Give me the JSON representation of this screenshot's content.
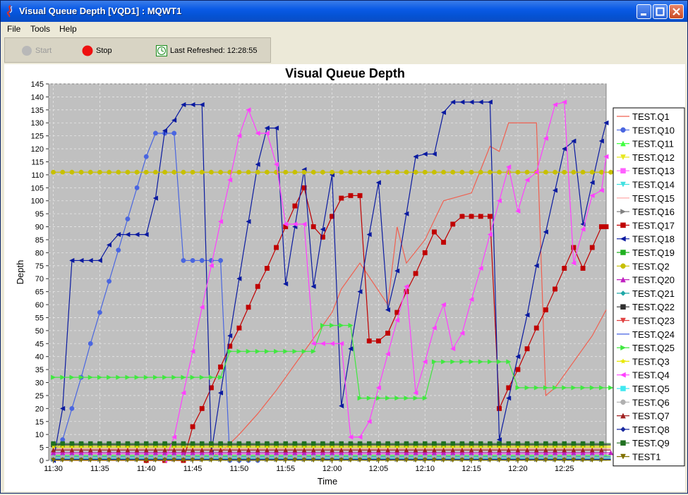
{
  "window": {
    "title": "Visual Queue Depth [VQD1] : MQWT1"
  },
  "menu": {
    "file": "File",
    "tools": "Tools",
    "help": "Help"
  },
  "toolbar": {
    "start_label": "Start",
    "stop_label": "Stop",
    "refresh_label": "Last Refreshed: 12:28:55"
  },
  "chart_data": {
    "type": "line",
    "title": "Visual Queue Depth",
    "xlabel": "Time",
    "ylabel": "Depth",
    "x_ticks": [
      "11:30",
      "11:35",
      "11:40",
      "11:45",
      "11:50",
      "11:55",
      "12:00",
      "12:05",
      "12:10",
      "12:15",
      "12:20",
      "12:25"
    ],
    "x_tick_minutes": [
      0,
      5,
      10,
      15,
      20,
      25,
      30,
      35,
      40,
      45,
      50,
      55
    ],
    "xlim": [
      -0.5,
      59.5
    ],
    "ylim": [
      0,
      145
    ],
    "y_ticks": [
      0,
      5,
      10,
      15,
      20,
      25,
      30,
      35,
      40,
      45,
      50,
      55,
      60,
      65,
      70,
      75,
      80,
      85,
      90,
      95,
      100,
      105,
      110,
      115,
      120,
      125,
      130,
      135,
      140,
      145
    ],
    "grid": true,
    "legend_position": "right",
    "series": [
      {
        "name": "TEST.Q1",
        "color": "#f06050",
        "marker": "none",
        "x": [
          0,
          12,
          14,
          16,
          18,
          20,
          22,
          24,
          26,
          28,
          30,
          31,
          33,
          36,
          37,
          38,
          40,
          42,
          43,
          45,
          46,
          47,
          48,
          49,
          50,
          52,
          53,
          54,
          56,
          58,
          59.5
        ],
        "y": [
          0,
          0,
          0,
          0,
          3,
          10,
          18,
          27,
          37,
          47,
          57,
          66,
          76,
          60,
          90,
          76,
          85,
          100,
          101,
          103,
          112,
          121,
          119,
          130,
          130,
          130,
          25,
          28,
          38,
          48,
          58
        ]
      },
      {
        "name": "TEST.Q10",
        "color": "#4a66e0",
        "marker": "circle",
        "x": [
          0,
          1,
          2,
          3,
          4,
          5,
          6,
          7,
          8,
          9,
          10,
          11,
          12,
          13,
          14,
          15,
          16,
          17,
          18,
          19,
          20,
          21,
          22
        ],
        "y": [
          3,
          8,
          20,
          32,
          45,
          57,
          69,
          81,
          93,
          105,
          117,
          126,
          126,
          126,
          77,
          77,
          77,
          77,
          77,
          0,
          0,
          0,
          0
        ]
      },
      {
        "name": "TEST.Q11",
        "color": "#40ff40",
        "marker": "triangle-up",
        "x": [
          0,
          60
        ],
        "y": [
          2,
          2
        ]
      },
      {
        "name": "TEST.Q12",
        "color": "#e8e820",
        "marker": "triangle-down",
        "x": [
          0,
          60
        ],
        "y": [
          5,
          5
        ]
      },
      {
        "name": "TEST.Q13",
        "color": "#ff60ff",
        "marker": "square",
        "x": [
          0,
          60
        ],
        "y": [
          2.5,
          2.5
        ]
      },
      {
        "name": "TEST.Q14",
        "color": "#40e0e0",
        "marker": "triangle-down",
        "x": [
          0,
          60
        ],
        "y": [
          1,
          1
        ]
      },
      {
        "name": "TEST.Q15",
        "color": "#ffa0a0",
        "marker": "none",
        "x": [
          0,
          60
        ],
        "y": [
          4.5,
          4.5
        ]
      },
      {
        "name": "TEST.Q16",
        "color": "#808080",
        "marker": "triangle-right",
        "x": [
          0,
          60
        ],
        "y": [
          0.3,
          0.3
        ]
      },
      {
        "name": "TEST.Q17",
        "color": "#c00000",
        "marker": "square",
        "x": [
          10,
          12,
          14,
          15,
          16,
          17,
          18,
          19,
          20,
          21,
          22,
          23,
          24,
          25,
          26,
          27,
          28,
          29,
          30,
          31,
          32,
          33,
          34,
          35,
          36,
          37,
          38,
          39,
          40,
          41,
          42,
          43,
          44,
          45,
          46,
          47,
          48,
          49,
          50,
          51,
          52,
          53,
          54,
          55,
          56,
          57,
          58,
          59,
          59.5
        ],
        "y": [
          0,
          0,
          0,
          13,
          20,
          28,
          36,
          44,
          51,
          59,
          67,
          74,
          82,
          90,
          98,
          105,
          90,
          86,
          94,
          101,
          102,
          102,
          46,
          46,
          49,
          57,
          65,
          72,
          80,
          88,
          84,
          91,
          94,
          94,
          94,
          94,
          20,
          28,
          35,
          43,
          51,
          58,
          66,
          74,
          82,
          74,
          82,
          90,
          90
        ]
      },
      {
        "name": "TEST.Q18",
        "color": "#0a1aa0",
        "marker": "triangle-left",
        "x": [
          0,
          1,
          2,
          3,
          4,
          5,
          6,
          7,
          8,
          9,
          10,
          11,
          12,
          13,
          14,
          15,
          16,
          17,
          18,
          19,
          20,
          21,
          22,
          23,
          24,
          25,
          26,
          27,
          28,
          29,
          30,
          31,
          32,
          33,
          34,
          35,
          36,
          37,
          38,
          39,
          40,
          41,
          42,
          43,
          44,
          45,
          46,
          47,
          48,
          49,
          50,
          51,
          52,
          53,
          54,
          55,
          56,
          57,
          58,
          59,
          59.5
        ],
        "y": [
          0,
          20,
          77,
          77,
          77,
          77,
          83,
          87,
          87,
          87,
          87,
          101,
          127,
          131,
          137,
          137,
          137,
          3,
          26,
          48,
          70,
          92,
          114,
          128,
          128,
          68,
          90,
          112,
          67,
          89,
          110,
          21,
          43,
          65,
          87,
          107,
          58,
          73,
          95,
          117,
          118,
          118,
          134,
          138,
          138,
          138,
          138,
          138,
          8,
          24,
          40,
          56,
          75,
          88,
          104,
          120,
          123,
          91,
          107,
          123,
          130
        ]
      },
      {
        "name": "TEST.Q19",
        "color": "#20b020",
        "marker": "square",
        "x": [
          0,
          60
        ],
        "y": [
          6,
          6
        ]
      },
      {
        "name": "TEST.Q2",
        "color": "#c8c000",
        "marker": "circle",
        "x": [
          0,
          1,
          2,
          3,
          4,
          5,
          6,
          7,
          8,
          9,
          10,
          11,
          12,
          13,
          14,
          15,
          16,
          17,
          18,
          19,
          20,
          21,
          22,
          23,
          24,
          25,
          26,
          27,
          28,
          29,
          30,
          31,
          32,
          33,
          34,
          35,
          36,
          37,
          38,
          39,
          40,
          41,
          42,
          43,
          44,
          45,
          46,
          47,
          48,
          49,
          50,
          51,
          52,
          53,
          54,
          55,
          56,
          57,
          58,
          59,
          60
        ],
        "y": [
          111,
          111,
          111,
          111,
          111,
          111,
          111,
          111,
          111,
          111,
          111,
          111,
          111,
          111,
          111,
          111,
          111,
          111,
          111,
          111,
          111,
          111,
          111,
          111,
          111,
          111,
          111,
          111,
          111,
          111,
          111,
          111,
          111,
          111,
          111,
          111,
          111,
          111,
          111,
          111,
          111,
          111,
          111,
          111,
          111,
          111,
          111,
          111,
          111,
          111,
          111,
          111,
          111,
          111,
          111,
          111,
          111,
          111,
          111,
          111,
          111
        ]
      },
      {
        "name": "TEST.Q20",
        "color": "#c020c0",
        "marker": "triangle-up",
        "x": [
          0,
          1,
          2,
          3,
          4,
          5,
          6,
          7,
          8,
          9,
          10,
          11,
          12,
          13,
          14,
          15,
          16,
          17,
          18,
          19,
          20,
          21,
          22,
          23,
          24,
          25,
          26,
          27,
          28,
          29,
          30,
          31,
          32,
          33,
          34,
          35,
          36,
          37,
          38,
          39,
          40,
          41,
          42,
          43,
          44,
          45,
          46,
          47,
          48,
          49,
          50,
          51,
          52,
          53,
          54,
          55,
          56,
          57,
          58,
          59,
          60
        ],
        "y": [
          3,
          3,
          3,
          3,
          3,
          3,
          3,
          3,
          3,
          3,
          3,
          3,
          3,
          3,
          3,
          3,
          3,
          3,
          3,
          3,
          3,
          3,
          3,
          3,
          3,
          3,
          3,
          3,
          3,
          3,
          3,
          3,
          3,
          3,
          3,
          3,
          3,
          3,
          3,
          3,
          3,
          3,
          3,
          3,
          3,
          3,
          3,
          3,
          3,
          3,
          3,
          3,
          3,
          3,
          3,
          3,
          3,
          3,
          3,
          3,
          3
        ]
      },
      {
        "name": "TEST.Q21",
        "color": "#20a8a8",
        "marker": "diamond",
        "x": [
          0,
          60
        ],
        "y": [
          1.5,
          1.5
        ]
      },
      {
        "name": "TEST.Q22",
        "color": "#303030",
        "marker": "square",
        "x": [
          0,
          60
        ],
        "y": [
          6,
          6
        ]
      },
      {
        "name": "TEST.Q23",
        "color": "#e04040",
        "marker": "triangle-down",
        "x": [
          0,
          60
        ],
        "y": [
          0.5,
          0.5
        ]
      },
      {
        "name": "TEST.Q24",
        "color": "#3050e0",
        "marker": "none",
        "x": [
          0,
          60
        ],
        "y": [
          0.2,
          0.2
        ]
      },
      {
        "name": "TEST.Q25",
        "color": "#40e840",
        "marker": "triangle-right",
        "x": [
          0,
          1,
          2,
          3,
          4,
          5,
          6,
          7,
          8,
          9,
          10,
          11,
          12,
          13,
          14,
          15,
          16,
          17,
          18,
          19,
          20,
          21,
          22,
          23,
          24,
          25,
          26,
          27,
          28,
          29,
          30,
          31,
          32,
          33,
          34,
          35,
          36,
          37,
          38,
          39,
          40,
          41,
          42,
          43,
          44,
          45,
          46,
          47,
          48,
          49,
          50,
          51,
          52,
          53,
          54,
          55,
          56,
          57,
          58,
          59,
          60
        ],
        "y": [
          32,
          32,
          32,
          32,
          32,
          32,
          32,
          32,
          32,
          32,
          32,
          32,
          32,
          32,
          32,
          32,
          32,
          32,
          32,
          42,
          42,
          42,
          42,
          42,
          42,
          42,
          42,
          42,
          42,
          52,
          52,
          52,
          52,
          24,
          24,
          24,
          24,
          24,
          24,
          24,
          24,
          38,
          38,
          38,
          38,
          38,
          38,
          38,
          38,
          38,
          28,
          28,
          28,
          28,
          28,
          28,
          28,
          28,
          28,
          28,
          28
        ]
      },
      {
        "name": "TEST.Q3",
        "color": "#e8e800",
        "marker": "star",
        "x": [
          0,
          60
        ],
        "y": [
          5.5,
          5.5
        ]
      },
      {
        "name": "TEST.Q4",
        "color": "#ff40ff",
        "marker": "triangle-left",
        "x": [
          12,
          13,
          14,
          15,
          16,
          17,
          18,
          19,
          20,
          21,
          22,
          23,
          24,
          25,
          26,
          27,
          28,
          29,
          30,
          31,
          32,
          33,
          34,
          35,
          36,
          37,
          38,
          39,
          40,
          41,
          42,
          43,
          44,
          45,
          46,
          47,
          48,
          49,
          50,
          51,
          52,
          53,
          54,
          55,
          56,
          57,
          58,
          59,
          59.5
        ],
        "y": [
          0,
          9,
          26,
          42,
          59,
          75,
          92,
          108,
          125,
          135,
          126,
          126,
          114,
          91,
          91,
          91,
          45,
          45,
          45,
          45,
          9,
          9,
          15,
          28,
          41,
          54,
          67,
          26,
          38,
          51,
          60,
          43,
          49,
          62,
          74,
          87,
          100,
          113,
          96,
          108,
          111,
          124,
          137,
          138,
          76,
          89,
          102,
          104,
          117
        ]
      },
      {
        "name": "TEST.Q5",
        "color": "#40e8f0",
        "marker": "square",
        "x": [
          0,
          60
        ],
        "y": [
          0.8,
          0.8
        ]
      },
      {
        "name": "TEST.Q6",
        "color": "#b0b0b0",
        "marker": "circle",
        "x": [
          0,
          60
        ],
        "y": [
          1.2,
          1.2
        ]
      },
      {
        "name": "TEST.Q7",
        "color": "#a02020",
        "marker": "triangle-up",
        "x": [
          0,
          60
        ],
        "y": [
          4,
          4
        ]
      },
      {
        "name": "TEST.Q8",
        "color": "#1a2aa0",
        "marker": "diamond",
        "x": [
          0,
          60
        ],
        "y": [
          0.4,
          0.4
        ]
      },
      {
        "name": "TEST.Q9",
        "color": "#207020",
        "marker": "square",
        "x": [
          0,
          60
        ],
        "y": [
          6.5,
          6.5
        ]
      },
      {
        "name": "TEST1",
        "color": "#807000",
        "marker": "triangle-down",
        "x": [
          0,
          60
        ],
        "y": [
          0.1,
          0.1
        ]
      }
    ]
  }
}
